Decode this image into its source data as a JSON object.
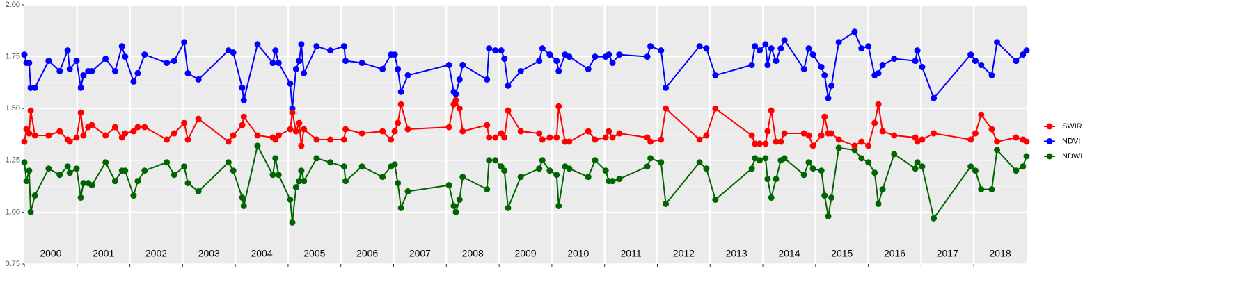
{
  "chart_data": {
    "type": "line",
    "xlim": [
      2000,
      2019
    ],
    "xticks": [
      2000,
      2001,
      2002,
      2003,
      2004,
      2005,
      2006,
      2007,
      2008,
      2009,
      2010,
      2011,
      2012,
      2013,
      2014,
      2015,
      2016,
      2017,
      2018
    ],
    "ylim": [
      0.75,
      2.0
    ],
    "yticks": [
      0.75,
      {
        "value": 1,
        "label": "1.00"
      },
      1.25,
      {
        "value": 1.5,
        "label": "1.50"
      },
      1.75,
      {
        "value": 2,
        "label": "2.00"
      }
    ],
    "grid": true,
    "legend": "right",
    "x": [
      2000.0,
      2000.04,
      2000.09,
      2000.12,
      2000.2,
      2000.46,
      2000.67,
      2000.82,
      2000.86,
      2000.99,
      2001.07,
      2001.12,
      2001.21,
      2001.28,
      2001.54,
      2001.72,
      2001.85,
      2001.91,
      2002.07,
      2002.15,
      2002.28,
      2002.7,
      2002.84,
      2003.03,
      2003.1,
      2003.3,
      2003.87,
      2003.96,
      2004.13,
      2004.16,
      2004.42,
      2004.71,
      2004.76,
      2004.82,
      2005.04,
      2005.08,
      2005.15,
      2005.21,
      2005.25,
      2005.3,
      2005.54,
      2005.8,
      2006.06,
      2006.09,
      2006.4,
      2006.79,
      2006.95,
      2007.02,
      2007.08,
      2007.14,
      2007.27,
      2008.05,
      2008.14,
      2008.18,
      2008.25,
      2008.31,
      2008.77,
      2008.81,
      2008.93,
      2009.04,
      2009.1,
      2009.17,
      2009.41,
      2009.76,
      2009.82,
      2009.96,
      2010.09,
      2010.13,
      2010.25,
      2010.33,
      2010.69,
      2010.82,
      2011.02,
      2011.08,
      2011.15,
      2011.28,
      2011.81,
      2011.87,
      2012.07,
      2012.16,
      2012.8,
      2012.93,
      2013.1,
      2013.79,
      2013.85,
      2013.94,
      2014.05,
      2014.09,
      2014.16,
      2014.25,
      2014.34,
      2014.41,
      2014.78,
      2014.87,
      2014.95,
      2015.11,
      2015.17,
      2015.24,
      2015.3,
      2015.44,
      2015.74,
      2015.87,
      2016.0,
      2016.12,
      2016.19,
      2016.27,
      2016.49,
      2016.89,
      2016.93,
      2017.02,
      2017.24,
      2017.94,
      2018.03,
      2018.14,
      2018.34,
      2018.44,
      2018.8,
      2018.93,
      2019.0
    ],
    "series": [
      {
        "name": "SWIR",
        "color": "#ff0000",
        "values": [
          1.34,
          1.4,
          1.38,
          1.49,
          1.37,
          1.37,
          1.39,
          1.35,
          1.34,
          1.36,
          1.48,
          1.37,
          1.41,
          1.42,
          1.37,
          1.41,
          1.36,
          1.38,
          1.39,
          1.41,
          1.41,
          1.35,
          1.38,
          1.43,
          1.35,
          1.45,
          1.34,
          1.37,
          1.42,
          1.46,
          1.37,
          1.36,
          1.35,
          1.37,
          1.4,
          1.48,
          1.39,
          1.43,
          1.32,
          1.4,
          1.35,
          1.35,
          1.35,
          1.4,
          1.38,
          1.39,
          1.35,
          1.39,
          1.43,
          1.52,
          1.4,
          1.41,
          1.52,
          1.54,
          1.5,
          1.39,
          1.42,
          1.36,
          1.36,
          1.38,
          1.36,
          1.49,
          1.39,
          1.38,
          1.35,
          1.36,
          1.36,
          1.51,
          1.34,
          1.34,
          1.39,
          1.35,
          1.36,
          1.39,
          1.36,
          1.38,
          1.36,
          1.34,
          1.35,
          1.5,
          1.35,
          1.37,
          1.5,
          1.37,
          1.33,
          1.33,
          1.33,
          1.39,
          1.49,
          1.34,
          1.34,
          1.38,
          1.38,
          1.37,
          1.32,
          1.37,
          1.46,
          1.38,
          1.38,
          1.35,
          1.32,
          1.34,
          1.32,
          1.43,
          1.52,
          1.39,
          1.37,
          1.36,
          1.34,
          1.35,
          1.38,
          1.35,
          1.38,
          1.47,
          1.4,
          1.34,
          1.36,
          1.35,
          1.34
        ]
      },
      {
        "name": "NDVI",
        "color": "#0000ff",
        "values": [
          1.76,
          1.72,
          1.72,
          1.6,
          1.6,
          1.73,
          1.68,
          1.78,
          1.69,
          1.73,
          1.6,
          1.66,
          1.68,
          1.68,
          1.74,
          1.68,
          1.8,
          1.75,
          1.63,
          1.67,
          1.76,
          1.72,
          1.73,
          1.82,
          1.67,
          1.64,
          1.78,
          1.77,
          1.6,
          1.54,
          1.81,
          1.72,
          1.78,
          1.72,
          1.62,
          1.5,
          1.69,
          1.73,
          1.81,
          1.67,
          1.8,
          1.78,
          1.8,
          1.73,
          1.72,
          1.69,
          1.76,
          1.76,
          1.69,
          1.58,
          1.66,
          1.71,
          1.58,
          1.57,
          1.64,
          1.71,
          1.64,
          1.79,
          1.78,
          1.78,
          1.74,
          1.61,
          1.68,
          1.73,
          1.79,
          1.76,
          1.73,
          1.68,
          1.76,
          1.75,
          1.69,
          1.75,
          1.75,
          1.76,
          1.72,
          1.76,
          1.75,
          1.8,
          1.78,
          1.6,
          1.8,
          1.79,
          1.66,
          1.71,
          1.8,
          1.78,
          1.81,
          1.71,
          1.79,
          1.73,
          1.79,
          1.83,
          1.69,
          1.79,
          1.76,
          1.7,
          1.66,
          1.55,
          1.61,
          1.82,
          1.87,
          1.79,
          1.8,
          1.66,
          1.67,
          1.71,
          1.74,
          1.73,
          1.78,
          1.7,
          1.55,
          1.76,
          1.73,
          1.71,
          1.66,
          1.82,
          1.73,
          1.76,
          1.78
        ]
      },
      {
        "name": "NDWI",
        "color": "#006400",
        "values": [
          1.24,
          1.15,
          1.2,
          1.0,
          1.08,
          1.21,
          1.18,
          1.22,
          1.19,
          1.21,
          1.07,
          1.14,
          1.14,
          1.13,
          1.24,
          1.15,
          1.2,
          1.2,
          1.08,
          1.15,
          1.2,
          1.24,
          1.18,
          1.22,
          1.14,
          1.1,
          1.24,
          1.2,
          1.07,
          1.03,
          1.32,
          1.18,
          1.26,
          1.18,
          1.06,
          0.95,
          1.12,
          1.15,
          1.2,
          1.15,
          1.26,
          1.24,
          1.22,
          1.15,
          1.22,
          1.17,
          1.22,
          1.23,
          1.14,
          1.02,
          1.1,
          1.13,
          1.03,
          1.0,
          1.06,
          1.17,
          1.11,
          1.25,
          1.25,
          1.22,
          1.2,
          1.02,
          1.17,
          1.21,
          1.25,
          1.2,
          1.18,
          1.03,
          1.22,
          1.21,
          1.17,
          1.25,
          1.2,
          1.15,
          1.15,
          1.16,
          1.22,
          1.26,
          1.24,
          1.04,
          1.24,
          1.21,
          1.06,
          1.21,
          1.26,
          1.25,
          1.26,
          1.16,
          1.07,
          1.16,
          1.25,
          1.26,
          1.18,
          1.24,
          1.21,
          1.2,
          1.08,
          0.98,
          1.07,
          1.31,
          1.3,
          1.26,
          1.24,
          1.19,
          1.04,
          1.11,
          1.28,
          1.21,
          1.24,
          1.22,
          0.97,
          1.22,
          1.2,
          1.11,
          1.11,
          1.3,
          1.2,
          1.22,
          1.27
        ]
      }
    ]
  }
}
